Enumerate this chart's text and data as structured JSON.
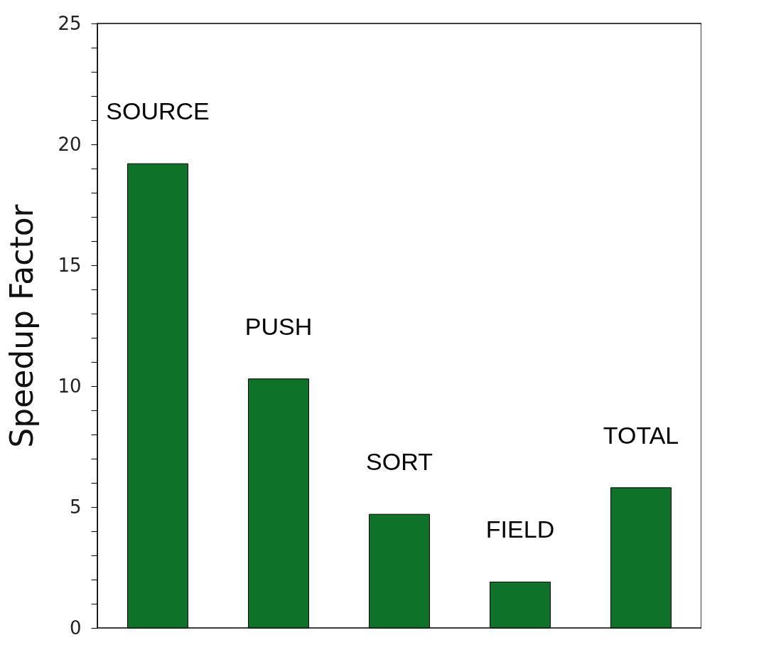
{
  "chart_data": {
    "type": "bar",
    "ylabel": "Speedup Factor",
    "categories": [
      "SOURCE",
      "PUSH",
      "SORT",
      "FIELD",
      "TOTAL"
    ],
    "values": [
      19.2,
      10.3,
      4.7,
      1.9,
      5.8
    ],
    "color": "#0e7328",
    "ylim": [
      0,
      25
    ],
    "yticks": [
      0,
      {
        "value": 1,
        "label": null
      },
      {
        "value": 2,
        "label": null
      },
      {
        "value": 3,
        "label": null
      },
      {
        "value": 4,
        "label": null
      },
      5,
      {
        "value": 6,
        "label": null
      },
      {
        "value": 7,
        "label": null
      },
      {
        "value": 8,
        "label": null
      },
      {
        "value": 9,
        "label": null
      },
      10,
      {
        "value": 11,
        "label": null
      },
      {
        "value": 12,
        "label": null
      },
      {
        "value": 13,
        "label": null
      },
      {
        "value": 14,
        "label": null
      },
      15,
      {
        "value": 16,
        "label": null
      },
      {
        "value": 17,
        "label": null
      },
      {
        "value": 18,
        "label": null
      },
      {
        "value": 19,
        "label": null
      },
      20,
      {
        "value": 21,
        "label": null
      },
      {
        "value": 22,
        "label": null
      },
      {
        "value": 23,
        "label": null
      },
      {
        "value": 24,
        "label": null
      },
      25
    ],
    "grid": false,
    "tick_labels": "y"
  }
}
